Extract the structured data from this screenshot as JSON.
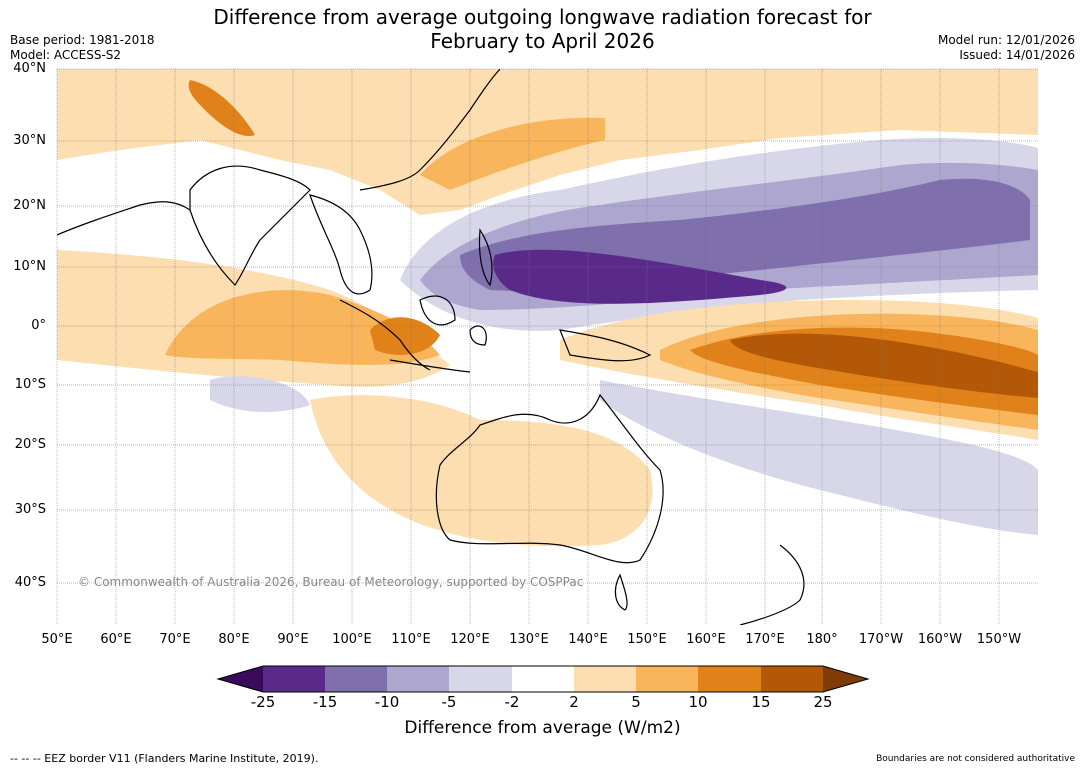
{
  "title_line1": "Difference from average outgoing longwave radiation forecast for",
  "title_line2": "February to April 2026",
  "base_period": "Base period: 1981-2018",
  "model": "Model: ACCESS-S2",
  "model_run": "Model run: 12/01/2026",
  "issued": "Issued: 14/01/2026",
  "copyright": "© Commonwealth of Australia 2026, Bureau of Meteorology, supported by COSPPac",
  "lat_labels": [
    "40°N",
    "30°N",
    "20°N",
    "10°N",
    "0°",
    "10°S",
    "20°S",
    "30°S",
    "40°S"
  ],
  "lon_labels": [
    "50°E",
    "60°E",
    "70°E",
    "80°E",
    "90°E",
    "100°E",
    "110°E",
    "120°E",
    "130°E",
    "140°E",
    "150°E",
    "160°E",
    "170°E",
    "180°",
    "170°W",
    "160°W",
    "150°W"
  ],
  "colorbar": {
    "title": "Difference from average (W/m2)",
    "ticks": [
      "-25",
      "-15",
      "-10",
      "-5",
      "-2",
      "2",
      "5",
      "10",
      "15",
      "25"
    ],
    "colors": [
      "#3a0a5c",
      "#5a2a8a",
      "#7f6fad",
      "#ada6cf",
      "#d8d7ea",
      "#ffffff",
      "#fddeb0",
      "#f9b55c",
      "#e0811a",
      "#b35806",
      "#7f3b08"
    ]
  },
  "footer_left": "--  --  -- EEZ border V11 (Flanders Marine Institute, 2019).",
  "footer_right": "Boundaries are not considered authoritative"
}
